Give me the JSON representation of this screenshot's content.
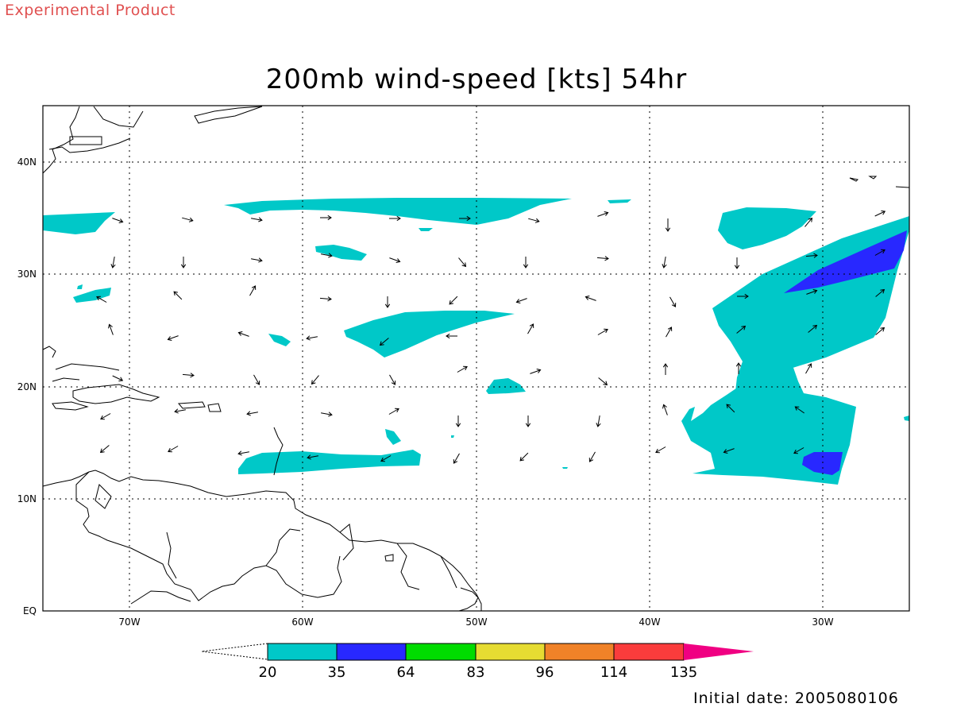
{
  "header": {
    "label": "Experimental Product",
    "title": "200mb wind-speed [kts] 54hr"
  },
  "axes": {
    "lon_labels": [
      "70W",
      "60W",
      "50W",
      "40W",
      "30W"
    ],
    "lat_labels": [
      "40N",
      "30N",
      "20N",
      "10N",
      "EQ"
    ]
  },
  "colorbar": {
    "labels": [
      "20",
      "35",
      "64",
      "83",
      "96",
      "114",
      "135"
    ],
    "colors": [
      "#00c8c8",
      "#2828ff",
      "#00dc00",
      "#e6dc32",
      "#f08228",
      "#fa3c3c",
      "#f00082"
    ]
  },
  "footer": {
    "initial_date": "Initial date: 2005080106"
  }
}
